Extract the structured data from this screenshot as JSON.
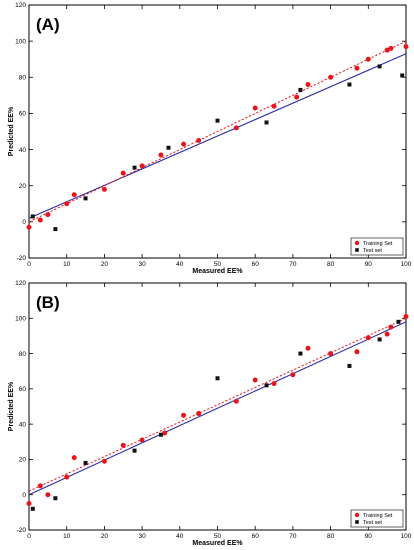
{
  "figure": {
    "colors": {
      "training": "#e8151b",
      "test": "#111111",
      "fit_line": "#2b2ba8",
      "training_fit": "#e8151b"
    }
  },
  "chart_data": [
    {
      "type": "scatter",
      "panel_label": "(A)",
      "xlabel": "Measured EE%",
      "ylabel": "Predicted EE%",
      "xlim": [
        0,
        100
      ],
      "ylim": [
        -20,
        120
      ],
      "xticks": [
        0,
        10,
        20,
        30,
        40,
        50,
        60,
        70,
        80,
        90,
        100
      ],
      "yticks": [
        -20,
        0,
        20,
        40,
        60,
        80,
        100,
        120
      ],
      "legend_position": "bottom-right",
      "series": [
        {
          "name": "Training Set",
          "marker": "circle",
          "color": "#e8151b",
          "x": [
            0,
            3,
            5,
            10,
            12,
            20,
            25,
            30,
            35,
            41,
            45,
            55,
            60,
            65,
            71,
            74,
            80,
            87,
            90,
            95,
            96,
            100
          ],
          "y": [
            -3,
            1,
            4,
            10,
            15,
            18,
            27,
            31,
            37,
            43,
            45,
            52,
            63,
            64,
            69,
            76,
            80,
            85,
            90,
            95,
            96,
            97
          ]
        },
        {
          "name": "Test set",
          "marker": "square",
          "color": "#111111",
          "x": [
            1,
            7,
            15,
            28,
            37,
            50,
            63,
            72,
            85,
            93,
            99
          ],
          "y": [
            3,
            -4,
            13,
            30,
            41,
            56,
            55,
            73,
            76,
            86,
            81
          ]
        }
      ],
      "lines": [
        {
          "style": "solid",
          "color": "#2b2ba8",
          "x": [
            0,
            100
          ],
          "y": [
            2,
            93
          ]
        },
        {
          "style": "dotted",
          "color": "#e8151b",
          "x": [
            0,
            100
          ],
          "y": [
            0,
            100
          ]
        }
      ]
    },
    {
      "type": "scatter",
      "panel_label": "(B)",
      "xlabel": "Measured EE%",
      "ylabel": "Predicted EE%",
      "xlim": [
        0,
        100
      ],
      "ylim": [
        -20,
        120
      ],
      "xticks": [
        0,
        10,
        20,
        30,
        40,
        50,
        60,
        70,
        80,
        90,
        100
      ],
      "yticks": [
        -20,
        0,
        20,
        40,
        60,
        80,
        100,
        120
      ],
      "legend_position": "bottom-right",
      "series": [
        {
          "name": "Training Set",
          "marker": "circle",
          "color": "#e8151b",
          "x": [
            0,
            3,
            5,
            10,
            12,
            20,
            25,
            30,
            36,
            41,
            45,
            55,
            60,
            65,
            70,
            74,
            80,
            87,
            90,
            95,
            96,
            100
          ],
          "y": [
            -5,
            5,
            0,
            10,
            21,
            19,
            28,
            31,
            35,
            45,
            46,
            53,
            65,
            63,
            68,
            83,
            80,
            81,
            89,
            91,
            95,
            101
          ]
        },
        {
          "name": "Test set",
          "marker": "square",
          "color": "#111111",
          "x": [
            1,
            7,
            15,
            28,
            35,
            50,
            63,
            72,
            85,
            93,
            98
          ],
          "y": [
            -8,
            -2,
            18,
            25,
            34,
            66,
            62,
            80,
            73,
            88,
            98
          ]
        }
      ],
      "lines": [
        {
          "style": "solid",
          "color": "#2b2ba8",
          "x": [
            0,
            100
          ],
          "y": [
            0,
            98
          ]
        },
        {
          "style": "dotted",
          "color": "#e8151b",
          "x": [
            0,
            100
          ],
          "y": [
            2,
            100
          ]
        }
      ]
    }
  ]
}
